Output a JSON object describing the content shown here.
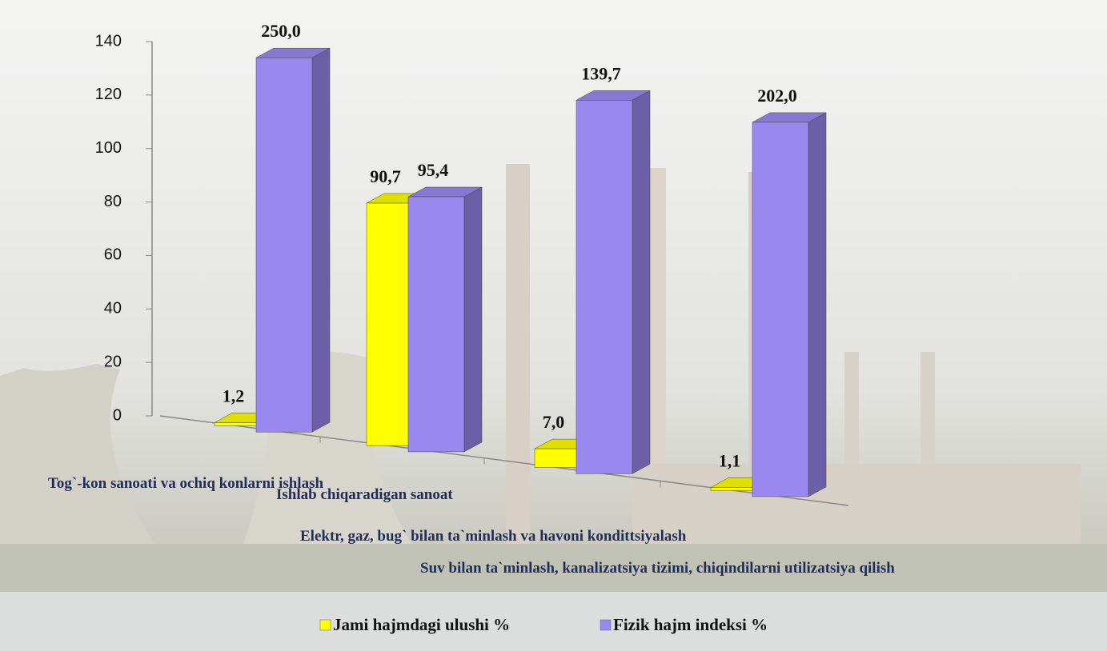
{
  "chart_data": {
    "type": "bar3d",
    "categories": [
      "Tog`-kon sanoati va ochiq konlarni ishlash",
      "Ishlab chiqaradigan sanoat",
      "Elektr, gaz, bug` bilan ta`minlash va havoni kondittsiyalash",
      "Suv bilan ta`minlash, kanalizatsiya tizimi, chiqindilarni utilizatsiya qilish"
    ],
    "series": [
      {
        "name": "Jami hajmdagi ulushi %",
        "color": "#ffff00",
        "values": [
          1.2,
          90.7,
          7.0,
          1.1
        ],
        "value_labels": [
          "1,2",
          "90,7",
          "7,0",
          "1,1"
        ]
      },
      {
        "name": "Fizik hajm indeksi %",
        "color": "#9988ee",
        "values": [
          250.0,
          95.4,
          139.7,
          202.0
        ],
        "value_labels": [
          "250,0",
          "95,4",
          "139,7",
          "202,0"
        ]
      }
    ],
    "ylim": [
      0,
      140
    ],
    "yticks": [
      0,
      20,
      40,
      60,
      80,
      100,
      120,
      140
    ],
    "legend": "bottom"
  }
}
